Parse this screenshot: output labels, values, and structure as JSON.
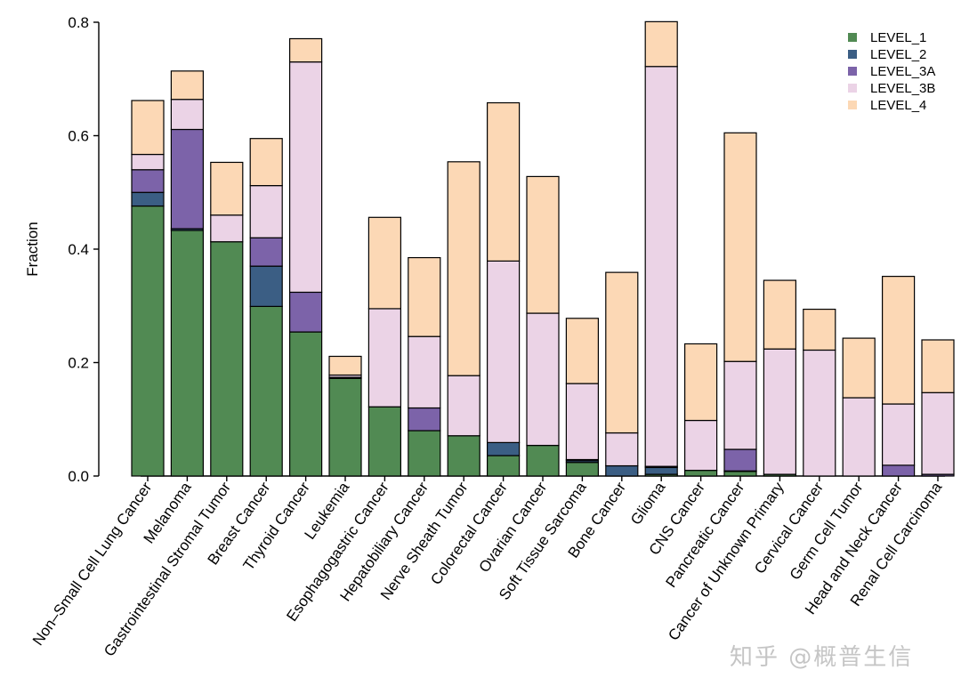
{
  "chart_data": {
    "type": "bar",
    "stacked": true,
    "ylabel": "Fraction",
    "xlabel": "",
    "ylim": [
      0,
      0.8
    ],
    "yticks": [
      "0.0",
      "0.2",
      "0.4",
      "0.6",
      "0.8"
    ],
    "legend_position": "top-right",
    "categories": [
      "Non–Small Cell Lung Cancer",
      "Melanoma",
      "Gastrointestinal Stromal Tumor",
      "Breast Cancer",
      "Thyroid Cancer",
      "Leukemia",
      "Esophagogastric Cancer",
      "Hepatobiliary Cancer",
      "Nerve Sheath Tumor",
      "Colorectal Cancer",
      "Ovarian Cancer",
      "Soft Tissue Sarcoma",
      "Bone Cancer",
      "Glioma",
      "CNS Cancer",
      "Pancreatic Cancer",
      "Cancer of Unknown Primary",
      "Cervical Cancer",
      "Germ Cell Tumor",
      "Head and Neck Cancer",
      "Renal Cell Carcinoma"
    ],
    "series": [
      {
        "name": "LEVEL_1",
        "color": "#518a53",
        "values": [
          0.476,
          0.433,
          0.413,
          0.299,
          0.254,
          0.172,
          0.122,
          0.08,
          0.071,
          0.036,
          0.054,
          0.024,
          0.0,
          0.003,
          0.01,
          0.008,
          0.003,
          0.0,
          0.0,
          0.0,
          0.0
        ]
      },
      {
        "name": "LEVEL_2",
        "color": "#3b5e84",
        "values": [
          0.024,
          0.003,
          0.0,
          0.071,
          0.0,
          0.002,
          0.0,
          0.0,
          0.0,
          0.023,
          0.0,
          0.003,
          0.018,
          0.012,
          0.0,
          0.001,
          0.0,
          0.0,
          0.0,
          0.0,
          0.0
        ]
      },
      {
        "name": "LEVEL_3A",
        "color": "#7c63a9",
        "values": [
          0.04,
          0.175,
          0.0,
          0.05,
          0.07,
          0.0,
          0.0,
          0.04,
          0.0,
          0.0,
          0.0,
          0.002,
          0.0,
          0.002,
          0.0,
          0.038,
          0.0,
          0.0,
          0.0,
          0.019,
          0.003
        ]
      },
      {
        "name": "LEVEL_3B",
        "color": "#ebd3e6",
        "values": [
          0.027,
          0.053,
          0.047,
          0.092,
          0.406,
          0.004,
          0.173,
          0.126,
          0.106,
          0.32,
          0.233,
          0.134,
          0.058,
          0.705,
          0.088,
          0.155,
          0.221,
          0.222,
          0.138,
          0.108,
          0.144
        ]
      },
      {
        "name": "LEVEL_4",
        "color": "#fcd8b5",
        "values": [
          0.095,
          0.05,
          0.093,
          0.083,
          0.041,
          0.033,
          0.161,
          0.139,
          0.377,
          0.279,
          0.241,
          0.115,
          0.283,
          0.079,
          0.135,
          0.403,
          0.121,
          0.072,
          0.105,
          0.225,
          0.093
        ]
      }
    ]
  },
  "watermark": "知乎 @概普生信"
}
